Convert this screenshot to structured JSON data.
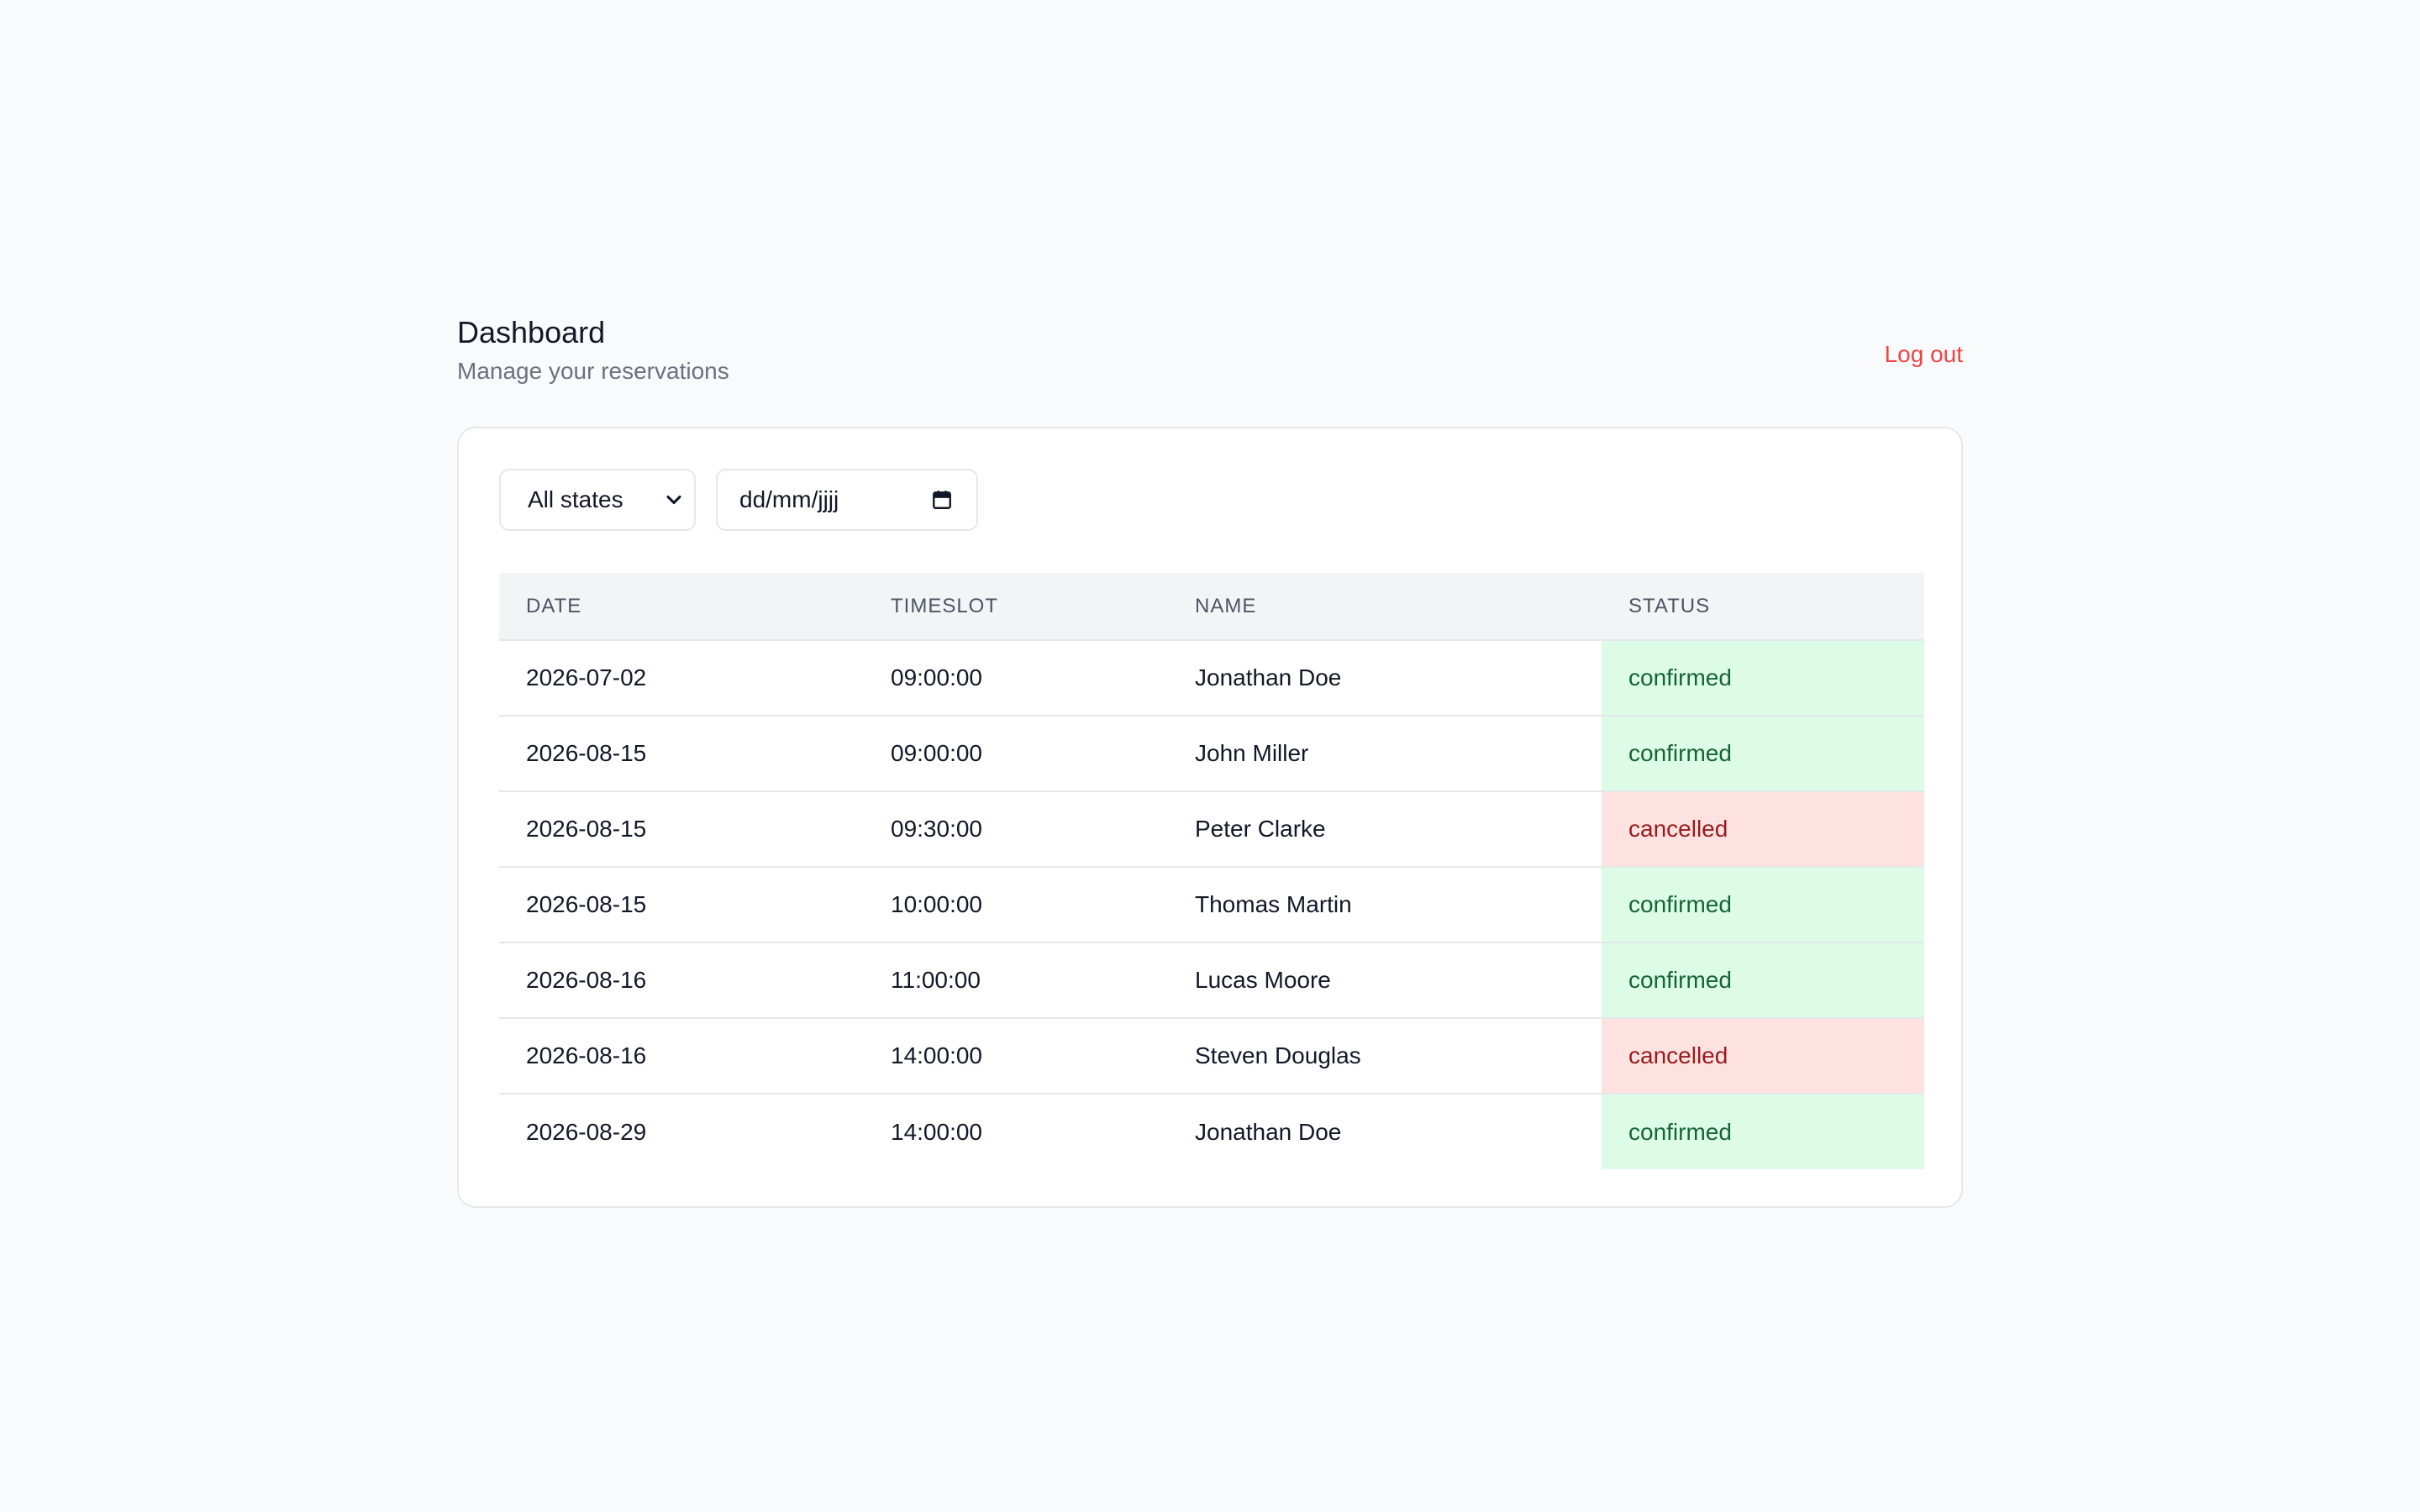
{
  "header": {
    "title": "Dashboard",
    "subtitle": "Manage your reservations",
    "logout_label": "Log out"
  },
  "filters": {
    "state_select": {
      "selected": "All states"
    },
    "date_input": {
      "placeholder": "dd/mm/jjjj"
    }
  },
  "table": {
    "columns": [
      "DATE",
      "TIMESLOT",
      "NAME",
      "STATUS"
    ],
    "rows": [
      {
        "date": "2026-07-02",
        "timeslot": "09:00:00",
        "name": "Jonathan Doe",
        "status": "confirmed"
      },
      {
        "date": "2026-08-15",
        "timeslot": "09:00:00",
        "name": "John Miller",
        "status": "confirmed"
      },
      {
        "date": "2026-08-15",
        "timeslot": "09:30:00",
        "name": "Peter Clarke",
        "status": "cancelled"
      },
      {
        "date": "2026-08-15",
        "timeslot": "10:00:00",
        "name": "Thomas Martin",
        "status": "confirmed"
      },
      {
        "date": "2026-08-16",
        "timeslot": "11:00:00",
        "name": "Lucas Moore",
        "status": "confirmed"
      },
      {
        "date": "2026-08-16",
        "timeslot": "14:00:00",
        "name": "Steven Douglas",
        "status": "cancelled"
      },
      {
        "date": "2026-08-29",
        "timeslot": "14:00:00",
        "name": "Jonathan Doe",
        "status": "confirmed"
      }
    ]
  },
  "colors": {
    "logout": "#ef4444",
    "confirmed_bg": "#dcfce7",
    "confirmed_text": "#166534",
    "cancelled_bg": "#fee2e2",
    "cancelled_text": "#991b1b"
  },
  "icons": {
    "select_chevron": "chevron-down-icon",
    "date_picker": "calendar-icon"
  }
}
